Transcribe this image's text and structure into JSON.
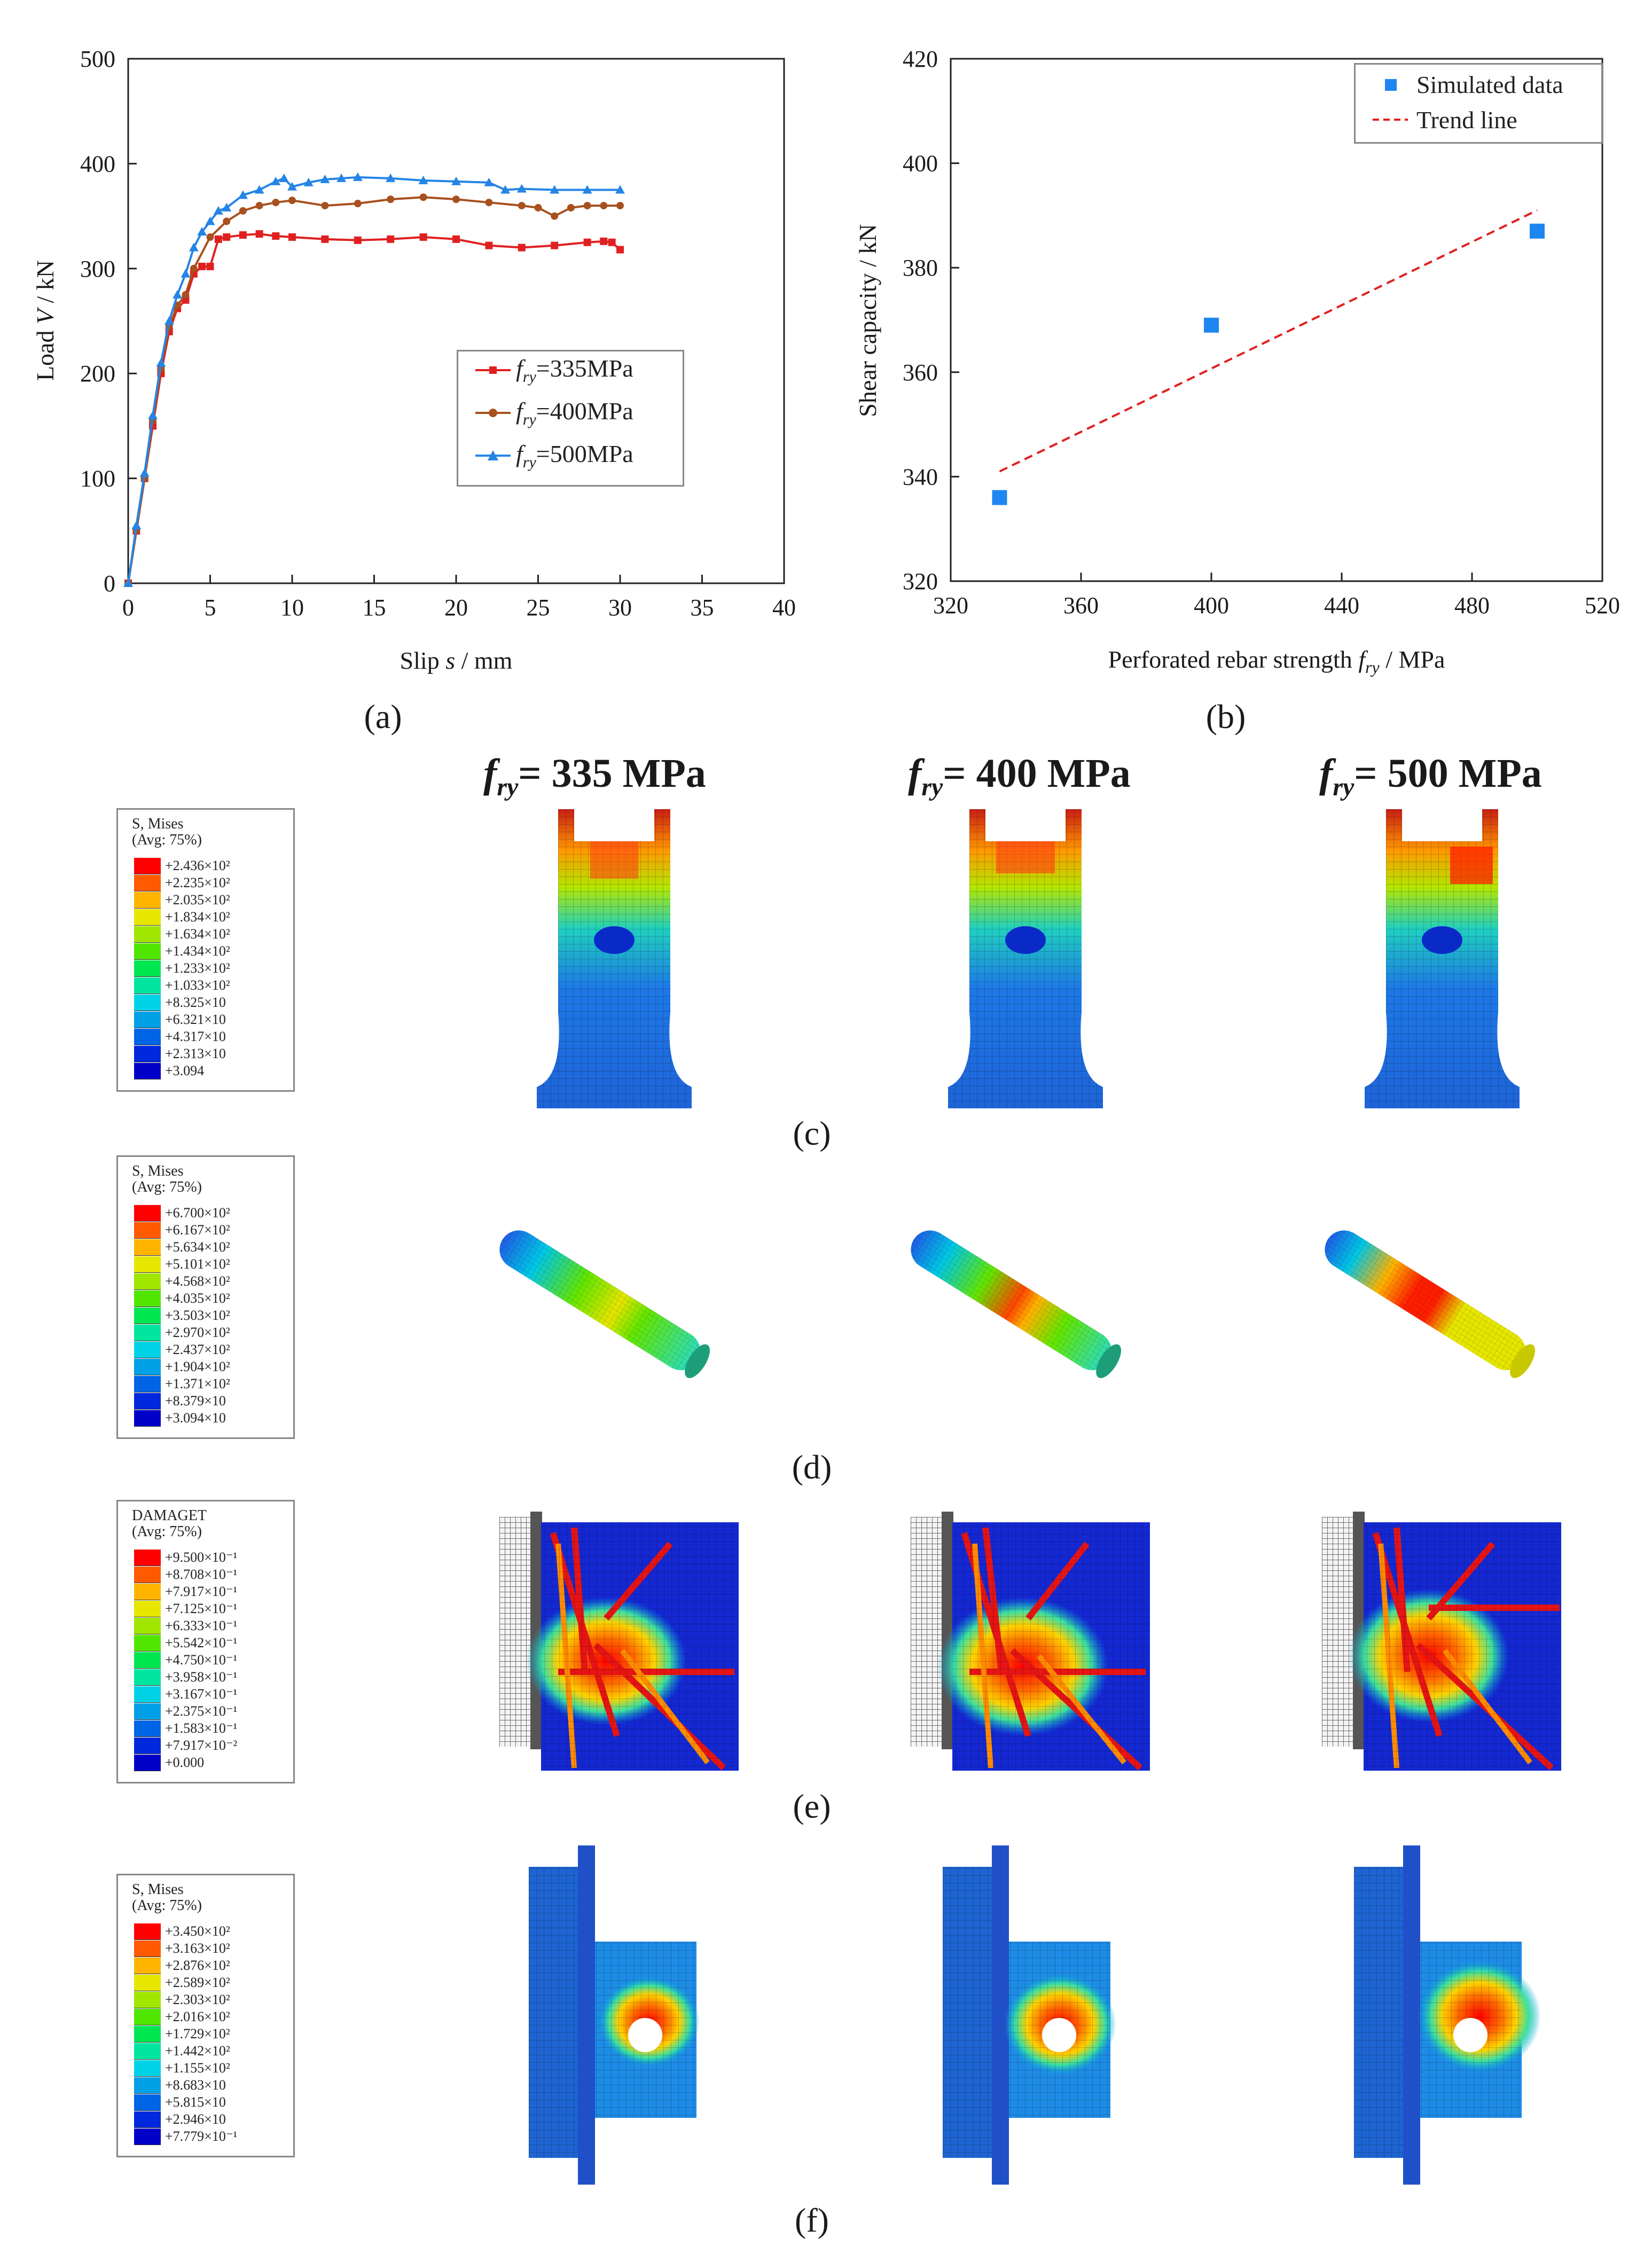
{
  "panel_labels": [
    "(a)",
    "(b)",
    "(c)",
    "(d)",
    "(e)",
    "(f)"
  ],
  "column_headers": [
    {
      "sym": "f",
      "sub": "ry",
      "text": "= 335 MPa"
    },
    {
      "sym": "f",
      "sub": "ry",
      "text": "= 400 MPa"
    },
    {
      "sym": "f",
      "sub": "ry",
      "text": "= 500 MPa"
    }
  ],
  "chart_data": [
    {
      "type": "line",
      "xlabel": "Slip s / mm",
      "ylabel": "Load V / kN",
      "xlim": [
        0,
        40
      ],
      "ylim": [
        0,
        500
      ],
      "xticks": [
        "0",
        "5",
        "10",
        "15",
        "20",
        "25",
        "30",
        "35",
        "40"
      ],
      "yticks": [
        "0",
        "100",
        "200",
        "300",
        "400",
        "500"
      ],
      "legend_position": "center-right",
      "series": [
        {
          "name": "fry=335MPa",
          "label_sym": "f",
          "label_sub": "ry",
          "label_text": "=335MPa",
          "color": "#e02020",
          "marker": "square",
          "x": [
            0,
            0.5,
            1,
            1.5,
            2,
            2.5,
            3,
            3.5,
            4,
            4.5,
            5,
            5.5,
            6,
            7,
            8,
            9,
            10,
            12,
            14,
            16,
            18,
            20,
            22,
            24,
            26,
            28,
            29,
            29.5,
            30
          ],
          "y": [
            0,
            50,
            100,
            150,
            200,
            240,
            262,
            270,
            295,
            302,
            302,
            328,
            330,
            332,
            333,
            331,
            330,
            328,
            327,
            328,
            330,
            328,
            322,
            320,
            322,
            325,
            326,
            325,
            318
          ]
        },
        {
          "name": "fry=400MPa",
          "label_sym": "f",
          "label_sub": "ry",
          "label_text": "=400MPa",
          "color": "#a8501e",
          "marker": "circle",
          "x": [
            0,
            0.5,
            1,
            1.5,
            2,
            2.5,
            3,
            3.5,
            4,
            5,
            6,
            7,
            8,
            9,
            10,
            12,
            14,
            16,
            18,
            20,
            22,
            24,
            25,
            26,
            27,
            28,
            29,
            30
          ],
          "y": [
            0,
            50,
            100,
            155,
            205,
            245,
            265,
            275,
            300,
            330,
            345,
            355,
            360,
            363,
            365,
            360,
            362,
            366,
            368,
            366,
            363,
            360,
            358,
            350,
            358,
            360,
            360,
            360
          ]
        },
        {
          "name": "fry=500MPa",
          "label_sym": "f",
          "label_sub": "ry",
          "label_text": "=500MPa",
          "color": "#2585e6",
          "marker": "triangle",
          "x": [
            0,
            0.5,
            1,
            1.5,
            2,
            2.5,
            3,
            3.5,
            4,
            4.5,
            5,
            5.5,
            6,
            7,
            8,
            9,
            9.5,
            10,
            11,
            12,
            13,
            14,
            16,
            18,
            20,
            22,
            23,
            24,
            26,
            28,
            30
          ],
          "y": [
            0,
            55,
            105,
            160,
            210,
            250,
            275,
            295,
            320,
            335,
            345,
            355,
            358,
            370,
            375,
            383,
            386,
            378,
            382,
            385,
            386,
            387,
            386,
            384,
            383,
            382,
            375,
            376,
            375,
            375,
            375
          ]
        }
      ]
    },
    {
      "type": "scatter",
      "xlabel": "Perforated rebar strength fry / MPa",
      "xlabel_parts": {
        "pre": "Perforated rebar strength ",
        "sym": "f",
        "sub": "ry",
        "post": " / MPa"
      },
      "ylabel": "Shear capacity / kN",
      "xlim": [
        320,
        520
      ],
      "ylim": [
        320,
        420
      ],
      "xticks": [
        "320",
        "360",
        "400",
        "440",
        "480",
        "520"
      ],
      "yticks": [
        "320",
        "340",
        "360",
        "380",
        "400",
        "420"
      ],
      "legend_position": "top-right",
      "series": [
        {
          "name": "Simulated data",
          "color": "#1e86f0",
          "marker": "square",
          "x": [
            335,
            400,
            500
          ],
          "y": [
            336,
            369,
            387
          ]
        },
        {
          "name": "Trend line",
          "color": "#e02020",
          "style": "dashed",
          "x": [
            335,
            500
          ],
          "y": [
            341,
            391
          ]
        }
      ]
    }
  ],
  "contour_legends": [
    {
      "title": "S, Mises",
      "subtitle": "(Avg: 75%)",
      "values": [
        "+2.436×10²",
        "+2.235×10²",
        "+2.035×10²",
        "+1.834×10²",
        "+1.634×10²",
        "+1.434×10²",
        "+1.233×10²",
        "+1.033×10²",
        "+8.325×10",
        "+6.321×10",
        "+4.317×10",
        "+2.313×10",
        "+3.094"
      ]
    },
    {
      "title": "S, Mises",
      "subtitle": "(Avg: 75%)",
      "values": [
        "+6.700×10²",
        "+6.167×10²",
        "+5.634×10²",
        "+5.101×10²",
        "+4.568×10²",
        "+4.035×10²",
        "+3.503×10²",
        "+2.970×10²",
        "+2.437×10²",
        "+1.904×10²",
        "+1.371×10²",
        "+8.379×10",
        "+3.094×10"
      ]
    },
    {
      "title": "DAMAGET",
      "subtitle": "(Avg: 75%)",
      "values": [
        "+9.500×10⁻¹",
        "+8.708×10⁻¹",
        "+7.917×10⁻¹",
        "+7.125×10⁻¹",
        "+6.333×10⁻¹",
        "+5.542×10⁻¹",
        "+4.750×10⁻¹",
        "+3.958×10⁻¹",
        "+3.167×10⁻¹",
        "+2.375×10⁻¹",
        "+1.583×10⁻¹",
        "+7.917×10⁻²",
        "+0.000"
      ]
    },
    {
      "title": "S, Mises",
      "subtitle": "(Avg: 75%)",
      "values": [
        "+3.450×10²",
        "+3.163×10²",
        "+2.876×10²",
        "+2.589×10²",
        "+2.303×10²",
        "+2.016×10²",
        "+1.729×10²",
        "+1.442×10²",
        "+1.155×10²",
        "+8.683×10",
        "+5.815×10",
        "+2.946×10",
        "+7.779×10⁻¹"
      ]
    }
  ],
  "contour_colors": [
    "#ff0000",
    "#ff5a00",
    "#ffb400",
    "#e6e600",
    "#a0e600",
    "#50e600",
    "#00e650",
    "#00e6a0",
    "#00d2e6",
    "#00a0e6",
    "#0064e6",
    "#0028dc",
    "#0000c8"
  ]
}
